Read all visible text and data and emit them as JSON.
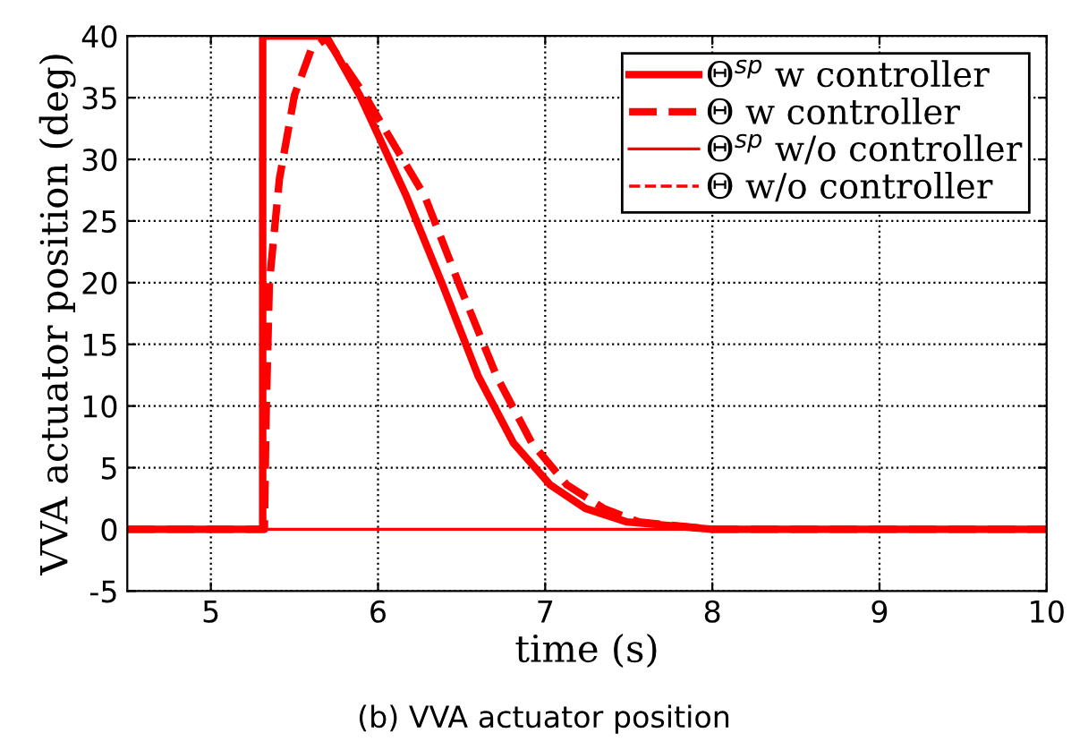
{
  "chart_data": {
    "type": "line",
    "xlabel": "time (s)",
    "ylabel": "VVA actuator position (deg)",
    "xlim": [
      4.5,
      10
    ],
    "ylim": [
      -5,
      40
    ],
    "xticks": [
      5,
      6,
      7,
      8,
      9,
      10
    ],
    "yticks": [
      -5,
      0,
      5,
      10,
      15,
      20,
      25,
      30,
      35,
      40
    ],
    "grid": true,
    "legend": "top right",
    "marker": "none",
    "annotations": [
      "(b) VVA actuator position"
    ],
    "series": [
      {
        "name": "Θ$^{sp}$ w controller",
        "color": "#ff0000",
        "line_style": "solid",
        "x": [
          4.5,
          5.31,
          5.31,
          5.69,
          5.89,
          6.17,
          6.39,
          6.6,
          6.81,
          7.03,
          7.24,
          7.49,
          8.0,
          10
        ],
        "values": [
          0,
          0,
          40,
          40,
          35.2,
          27,
          19.7,
          12.4,
          7,
          3.6,
          1.7,
          0.6,
          0,
          0
        ]
      },
      {
        "name": "Θ w controller",
        "color": "#ff0000",
        "line_style": "dashed",
        "x": [
          4.5,
          5.32,
          5.33,
          5.35,
          5.41,
          5.5,
          5.6,
          5.69,
          5.92,
          6.28,
          6.49,
          6.71,
          6.92,
          7.13,
          7.35,
          7.56,
          8.0,
          10
        ],
        "values": [
          0,
          0,
          9,
          20,
          28.4,
          35.2,
          38.9,
          39.8,
          35.2,
          27,
          19.7,
          12.4,
          7,
          3.6,
          1.7,
          0.6,
          0,
          0
        ]
      },
      {
        "name": "Θ$^{sp}$ w/o controller",
        "color": "#ff0000",
        "line_style": "solid",
        "x": [
          4.5,
          10
        ],
        "values": [
          0,
          0
        ]
      },
      {
        "name": "Θ w/o controller",
        "color": "#ff0000",
        "line_style": "dashed"
      }
    ]
  }
}
